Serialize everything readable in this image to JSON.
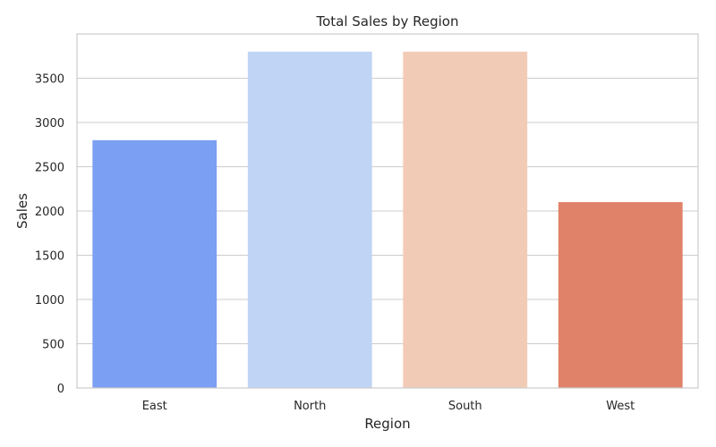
{
  "chart_data": {
    "type": "bar",
    "title": "Total Sales by Region",
    "xlabel": "Region",
    "ylabel": "Sales",
    "categories": [
      "East",
      "North",
      "South",
      "West"
    ],
    "values": [
      2800,
      3800,
      3800,
      2100
    ],
    "colors": [
      "#7b9ff2",
      "#c0d4f5",
      "#f2cbb7",
      "#e0826a"
    ],
    "ylim": [
      0,
      4000
    ],
    "yticks": [
      0,
      500,
      1000,
      1500,
      2000,
      2500,
      3000,
      3500
    ],
    "grid": true,
    "grid_axis": "y"
  }
}
